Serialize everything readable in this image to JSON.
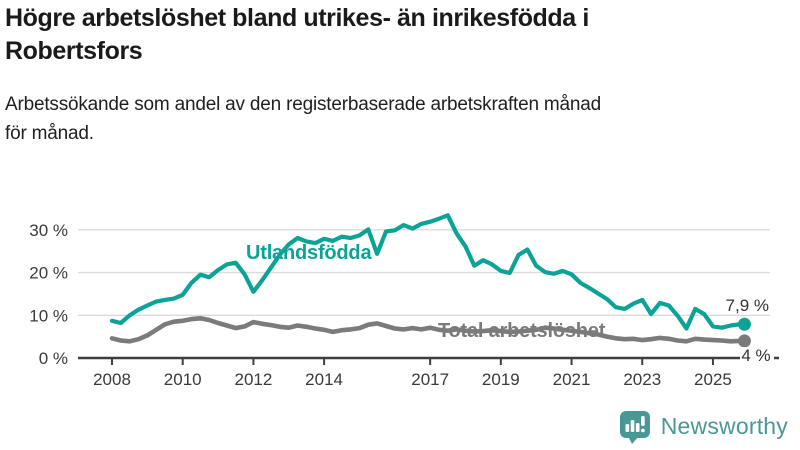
{
  "header": {
    "title_lines": [
      "Högre arbetslöshet bland utrikes- än inrikesfödda i",
      "Robertsfors"
    ],
    "subtitle_lines": [
      "Arbetssökande som andel av den registerbaserade arbetskraften månad",
      "för månad."
    ]
  },
  "colors": {
    "foreign_series": "#0BA396",
    "total_series": "#7B7B7B",
    "grid": "#DBDBDB",
    "axis": "#3F3F3F",
    "tick_text": "#3A3A3A",
    "end_label_text": "#333333",
    "brand": "#4A9896",
    "background": "#FFFFFF"
  },
  "chart_data": {
    "type": "line",
    "title": "Högre arbetslöshet bland utrikes- än inrikesfödda i Robertsfors",
    "subtitle": "Arbetssökande som andel av den registerbaserade arbetskraften månad för månad.",
    "x_unit": "decimal_year",
    "xlim": [
      2008,
      2026
    ],
    "ylim": [
      0,
      35
    ],
    "grid": "horizontal",
    "legend_position": "inline-labels",
    "x": [
      2008,
      2008.25,
      2008.5,
      2008.75,
      2009,
      2009.25,
      2009.5,
      2009.75,
      2010,
      2010.25,
      2010.5,
      2010.75,
      2011,
      2011.25,
      2011.5,
      2011.75,
      2012,
      2012.25,
      2012.5,
      2012.75,
      2013,
      2013.25,
      2013.5,
      2013.75,
      2014,
      2014.25,
      2014.5,
      2014.75,
      2015,
      2015.25,
      2015.5,
      2015.75,
      2016,
      2016.25,
      2016.5,
      2016.75,
      2017,
      2017.25,
      2017.5,
      2017.75,
      2018,
      2018.25,
      2018.5,
      2018.75,
      2019,
      2019.25,
      2019.5,
      2019.75,
      2020,
      2020.25,
      2020.5,
      2020.75,
      2021,
      2021.25,
      2021.5,
      2021.75,
      2022,
      2022.25,
      2022.5,
      2022.75,
      2023,
      2023.25,
      2023.5,
      2023.75,
      2024,
      2024.25,
      2024.5,
      2024.75,
      2025,
      2025.25,
      2025.5,
      2025.75
    ],
    "series": [
      {
        "name": "Utlandsfödda",
        "color": "#0BA396",
        "end_label": "7,9 %",
        "end_value": 7.9,
        "values": [
          8.7,
          8.2,
          10.0,
          11.3,
          12.3,
          13.2,
          13.6,
          13.9,
          14.8,
          17.6,
          19.5,
          18.9,
          20.6,
          21.9,
          22.3,
          19.6,
          15.5,
          18.2,
          21.2,
          24.2,
          26.6,
          28.1,
          27.3,
          26.9,
          27.9,
          27.4,
          28.4,
          28.1,
          28.7,
          30.1,
          24.4,
          29.6,
          29.9,
          31.1,
          30.3,
          31.4,
          31.9,
          32.6,
          33.4,
          29.1,
          26.1,
          21.6,
          22.9,
          21.9,
          20.4,
          19.9,
          24.1,
          25.4,
          21.6,
          20.1,
          19.7,
          20.4,
          19.6,
          17.6,
          16.4,
          15.1,
          13.8,
          11.9,
          11.5,
          12.7,
          13.6,
          10.3,
          12.9,
          12.3,
          9.9,
          6.9,
          11.5,
          10.3,
          7.4,
          7.1,
          7.6,
          7.9
        ]
      },
      {
        "name": "Total arbetslöshet",
        "color": "#7B7B7B",
        "end_label": "4 %",
        "end_value": 4.0,
        "values": [
          4.6,
          4.1,
          3.9,
          4.4,
          5.3,
          6.6,
          7.9,
          8.5,
          8.7,
          9.1,
          9.3,
          8.9,
          8.2,
          7.6,
          7.0,
          7.4,
          8.4,
          8.0,
          7.7,
          7.3,
          7.1,
          7.6,
          7.3,
          6.9,
          6.6,
          6.1,
          6.5,
          6.7,
          7.0,
          7.8,
          8.1,
          7.5,
          6.9,
          6.7,
          7.0,
          6.7,
          7.1,
          6.6,
          6.4,
          6.7,
          6.4,
          6.2,
          6.3,
          6.5,
          6.3,
          6.1,
          6.2,
          6.4,
          6.6,
          7.1,
          6.9,
          6.6,
          6.4,
          6.1,
          5.8,
          5.5,
          5.0,
          4.6,
          4.4,
          4.5,
          4.2,
          4.4,
          4.7,
          4.5,
          4.1,
          3.9,
          4.5,
          4.3,
          4.2,
          4.1,
          3.9,
          4.0
        ]
      }
    ],
    "x_ticks": [
      {
        "year": 2008,
        "label": "2008"
      },
      {
        "year": 2010,
        "label": "2010"
      },
      {
        "year": 2012,
        "label": "2012"
      },
      {
        "year": 2014,
        "label": "2014"
      },
      {
        "year": 2017,
        "label": "2017"
      },
      {
        "year": 2019,
        "label": "2019"
      },
      {
        "year": 2021,
        "label": "2021"
      },
      {
        "year": 2023,
        "label": "2023"
      },
      {
        "year": 2025,
        "label": "2025"
      }
    ],
    "y_ticks": [
      {
        "value": 0,
        "label": "0 %"
      },
      {
        "value": 10,
        "label": "10 %"
      },
      {
        "value": 20,
        "label": "20 %"
      },
      {
        "value": 30,
        "label": "30 %"
      }
    ]
  },
  "footer": {
    "brand": "Newsworthy"
  }
}
